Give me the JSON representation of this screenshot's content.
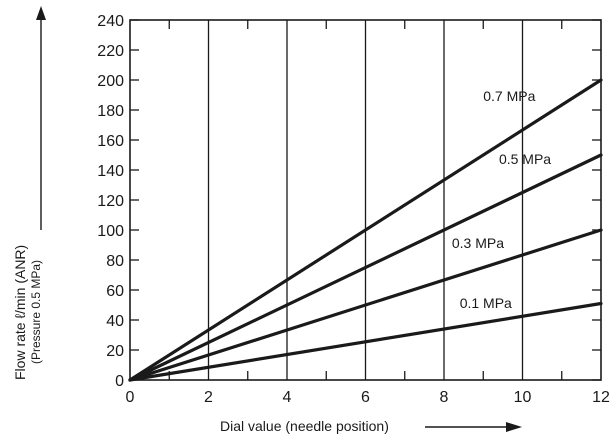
{
  "chart_data": {
    "type": "line",
    "title": "",
    "xlabel": "Dial value (needle position)",
    "ylabel": "Flow rate ℓ/min (ANR)",
    "ylabel_note": "(Pressure 0.5 MPa)",
    "xlim": [
      0,
      12
    ],
    "ylim": [
      0,
      240
    ],
    "x_ticks": [
      0,
      2,
      4,
      6,
      8,
      10,
      12
    ],
    "y_ticks": [
      0,
      20,
      40,
      60,
      80,
      100,
      120,
      140,
      160,
      180,
      200,
      220,
      240
    ],
    "grid": "vertical lines every 2 dial units; horizontal major ticks every 20",
    "legend": "inline labels on lines",
    "series": [
      {
        "name": "0.7 MPa",
        "x": [
          0,
          12
        ],
        "y": [
          0,
          200
        ]
      },
      {
        "name": "0.5 MPa",
        "x": [
          0,
          12
        ],
        "y": [
          0,
          150
        ]
      },
      {
        "name": "0.3 MPa",
        "x": [
          0,
          12
        ],
        "y": [
          0,
          100
        ]
      },
      {
        "name": "0.1 MPa",
        "x": [
          0,
          12
        ],
        "y": [
          0,
          51
        ]
      }
    ],
    "series_label_positions": [
      {
        "x": 9.0,
        "y": 186
      },
      {
        "x": 9.4,
        "y": 144
      },
      {
        "x": 8.2,
        "y": 88
      },
      {
        "x": 8.4,
        "y": 48
      }
    ],
    "colors": {
      "line": "#1a1a1a",
      "grid": "#1a1a1a",
      "background": "#ffffff"
    }
  }
}
